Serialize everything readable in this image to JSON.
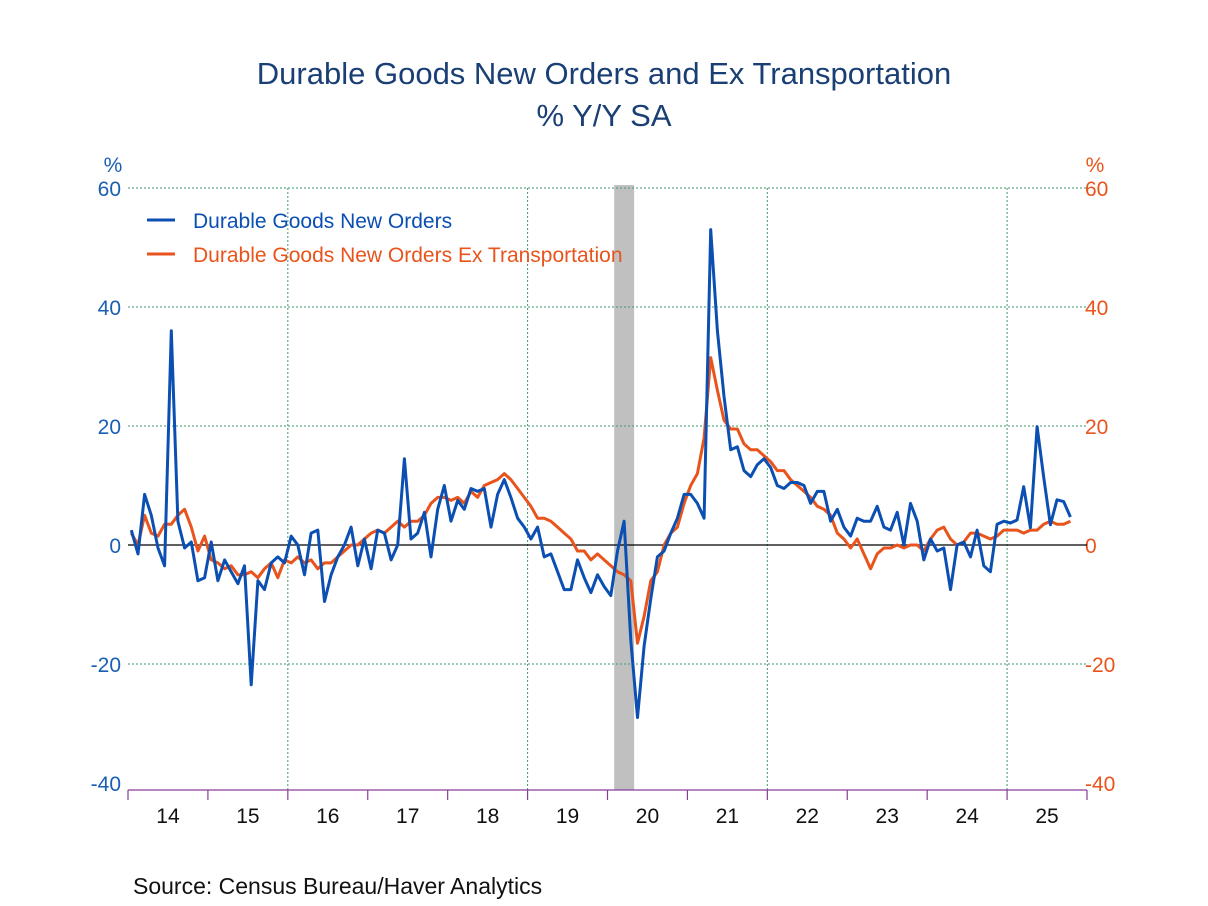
{
  "chart_data": {
    "type": "line",
    "title": "Durable Goods New Orders and Ex Transportation",
    "subtitle": "% Y/Y   SA",
    "ylabel_left": "%",
    "ylabel_right": "%",
    "ylim": [
      -40,
      60
    ],
    "yticks": [
      60,
      40,
      20,
      0,
      -20,
      -40
    ],
    "x_start": "2014-01",
    "x_end": "2025-10",
    "frequency": "monthly",
    "xtick_labels": [
      "14",
      "15",
      "16",
      "17",
      "18",
      "19",
      "20",
      "21",
      "22",
      "23",
      "24",
      "25"
    ],
    "grid": true,
    "legend_position": "top-left",
    "recession_shading": {
      "start": "2020-02",
      "end": "2020-04",
      "color": "#c0c0c0"
    },
    "series": [
      {
        "name": "Durable Goods New Orders",
        "color": "#0b4fb3",
        "axis": "left",
        "values": [
          2.5,
          -1.5,
          8.5,
          5,
          -0.5,
          -3.5,
          36,
          4,
          -0.5,
          0.5,
          -6,
          -5.5,
          0.5,
          -6,
          -2.5,
          -4.5,
          -6.5,
          -3.5,
          -23.5,
          -6,
          -7.5,
          -3,
          -2,
          -3,
          1.5,
          0,
          -5,
          2,
          2.5,
          -9.5,
          -5,
          -2,
          0,
          3,
          -3.5,
          1,
          -4,
          2.5,
          2,
          -2.5,
          0,
          14.5,
          1,
          2,
          5.5,
          -2,
          6,
          10,
          4,
          7.5,
          6,
          9.5,
          9,
          9.5,
          3,
          8.5,
          11,
          8,
          4.5,
          3,
          1,
          3,
          -2,
          -1.5,
          -4.5,
          -7.5,
          -7.5,
          -2.5,
          -5.5,
          -8,
          -5,
          -7,
          -8.5,
          -1,
          4,
          -16,
          -29,
          -17,
          -9,
          -2,
          -1,
          2,
          4.5,
          8.5,
          8.5,
          7,
          4.5,
          53,
          36,
          25,
          16,
          16.5,
          12.5,
          11.5,
          13.5,
          14.5,
          13,
          10,
          9.5,
          10.5,
          10.5,
          10,
          7,
          9,
          9,
          4,
          6,
          3,
          1.5,
          4.5,
          4,
          4,
          6.5,
          3,
          2.5,
          5.5,
          0,
          7,
          4,
          -2.5,
          1,
          -1,
          -0.5,
          -7.5,
          0,
          0.5,
          -2,
          2.5,
          -3.5,
          -4.5,
          3.5,
          4,
          3.7,
          4.2,
          9.8,
          2.9,
          19.9,
          11.4,
          3.4,
          7.6,
          7.3,
          4.7
        ]
      },
      {
        "name": "Durable Goods New Orders Ex Transportation",
        "color": "#e8541c",
        "axis": "right",
        "values": [
          2,
          0,
          5,
          2,
          1.5,
          3.5,
          3.5,
          5,
          6,
          3,
          -1,
          1.5,
          -2.5,
          -3,
          -4,
          -3.5,
          -5,
          -5,
          -4.5,
          -5.5,
          -4,
          -3,
          -5.5,
          -2.5,
          -3,
          -2,
          -3,
          -2.5,
          -4,
          -3,
          -3,
          -2,
          -1,
          0,
          0,
          1,
          2,
          2.5,
          2,
          3,
          4,
          3,
          4,
          4,
          5,
          7,
          8,
          8,
          7.5,
          8,
          7,
          9,
          8,
          10,
          10.5,
          11,
          12,
          11,
          9.5,
          8,
          6.5,
          4.5,
          4.5,
          4,
          3,
          2,
          1,
          -1,
          -1,
          -2.5,
          -1.5,
          -2.5,
          -3.5,
          -4.5,
          -5,
          -6,
          -16.5,
          -12,
          -6,
          -4.5,
          0,
          2,
          3,
          7,
          10,
          12,
          18,
          31.5,
          26,
          21,
          19.5,
          19.5,
          17,
          16,
          16,
          15,
          14,
          12.5,
          12.5,
          11,
          10,
          9,
          8,
          6.5,
          6,
          5,
          2,
          1,
          -0.5,
          1,
          -1.5,
          -4,
          -1.5,
          -0.5,
          -0.5,
          0,
          -0.5,
          0,
          0,
          -1,
          1,
          2.5,
          3,
          1,
          0,
          0.5,
          2,
          2,
          1.5,
          1,
          1.5,
          2.5,
          2.5,
          2.5,
          2,
          2.5,
          2.5,
          3.5,
          4,
          3.5,
          3.5,
          4
        ]
      }
    ]
  },
  "source": "Source:  Census Bureau/Haver Analytics",
  "colors": {
    "title": "#1a3f75",
    "left_axis": "#1a5fb4",
    "right_axis": "#e8541c",
    "grid": "#3a9a6a",
    "x_axis": "#8a3a9a"
  }
}
